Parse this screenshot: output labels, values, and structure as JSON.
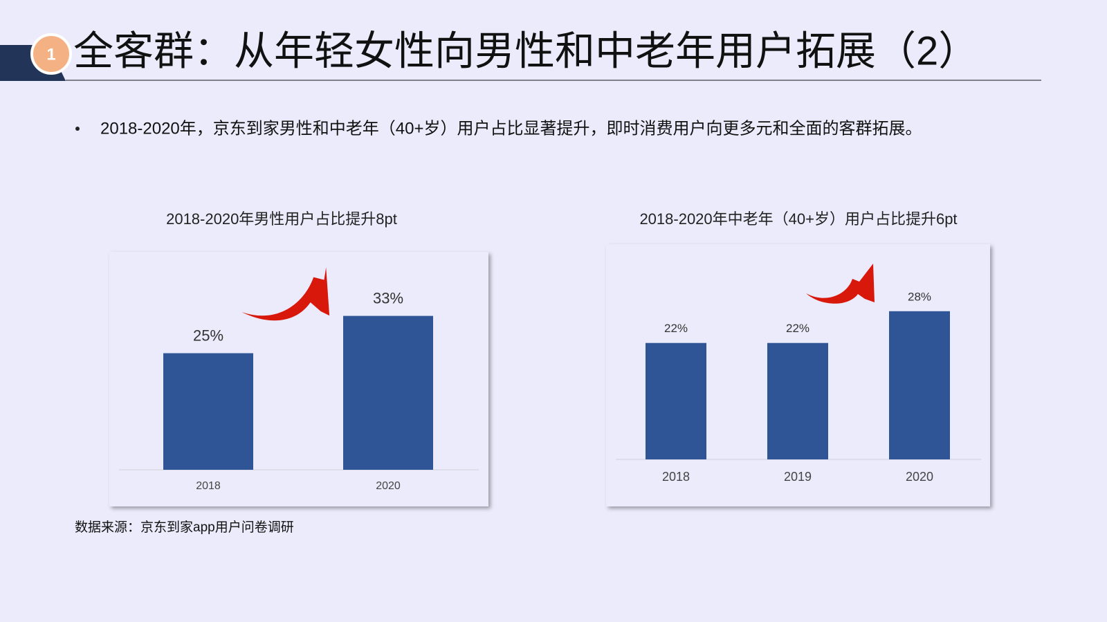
{
  "badge": "1",
  "header": {
    "title": "全客群：从年轻女性向男性和中老年用户拓展（2）"
  },
  "bullet": "2018-2020年，京东到家男性和中老年（40+岁）用户占比显著提升，即时消费用户向更多元和全面的客群拓展。",
  "source": "数据来源：京东到家app用户问卷调研",
  "chart_data": [
    {
      "type": "bar",
      "title": "2018-2020年男性用户占比提升8pt",
      "categories": [
        "2018",
        "2020"
      ],
      "values": [
        25,
        33
      ],
      "value_labels": [
        "25%",
        "33%"
      ],
      "color": "#2f5597"
    },
    {
      "type": "bar",
      "title": "2018-2020年中老年（40+岁）用户占比提升6pt",
      "categories": [
        "2018",
        "2019",
        "2020"
      ],
      "values": [
        22,
        22,
        28
      ],
      "value_labels": [
        "22%",
        "22%",
        "28%"
      ],
      "color": "#2f5597"
    }
  ]
}
